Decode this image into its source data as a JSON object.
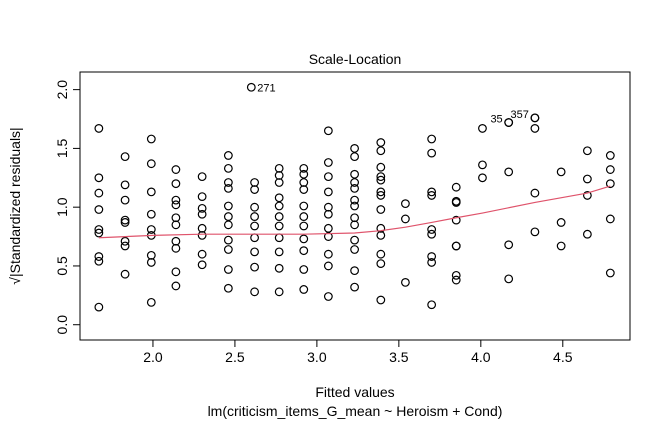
{
  "chart_data": {
    "type": "scatter",
    "title": "Scale-Location",
    "xlabel": "Fitted values",
    "subtitle": "lm(criticism_items_G_mean ~ Heroism + Cond)",
    "ylabel": "√|Standardized residuals|",
    "xlim": [
      1.555,
      4.91
    ],
    "ylim": [
      -0.13,
      2.15
    ],
    "xticks": [
      2.0,
      2.5,
      3.0,
      3.5,
      4.0,
      4.5
    ],
    "xtick_labels": [
      "2.0",
      "2.5",
      "3.0",
      "3.5",
      "4.0",
      "4.5"
    ],
    "yticks": [
      0.0,
      0.5,
      1.0,
      1.5,
      2.0
    ],
    "ytick_labels": [
      "0.0",
      "0.5",
      "1.0",
      "1.5",
      "2.0"
    ],
    "grid": false,
    "point_color": "#000000",
    "smoother_color": "#DF536B",
    "columns": [
      {
        "x": 1.67,
        "y": [
          1.67,
          1.25,
          1.12,
          0.98,
          0.81,
          0.78,
          0.58,
          0.54,
          0.15
        ]
      },
      {
        "x": 1.83,
        "y": [
          1.43,
          1.19,
          1.06,
          0.89,
          0.87,
          0.71,
          0.67,
          0.43
        ]
      },
      {
        "x": 1.99,
        "y": [
          1.58,
          1.37,
          1.13,
          0.94,
          0.81,
          0.76,
          0.59,
          0.53,
          0.19
        ]
      },
      {
        "x": 2.14,
        "y": [
          1.32,
          1.2,
          1.06,
          1.02,
          0.91,
          0.85,
          0.71,
          0.65,
          0.45,
          0.33
        ]
      },
      {
        "x": 2.3,
        "y": [
          1.26,
          1.09,
          0.99,
          0.94,
          0.82,
          0.76,
          0.6,
          0.51
        ]
      },
      {
        "x": 2.46,
        "y": [
          1.44,
          1.33,
          1.21,
          1.16,
          1.01,
          0.92,
          0.85,
          0.72,
          0.64,
          0.47,
          0.31
        ]
      },
      {
        "x": 2.62,
        "y": [
          1.21,
          1.15,
          1.0,
          0.92,
          0.84,
          0.74,
          0.62,
          0.49,
          0.28
        ]
      },
      {
        "x": 2.77,
        "y": [
          1.33,
          1.27,
          1.21,
          1.08,
          1.01,
          0.92,
          0.84,
          0.74,
          0.62,
          0.48,
          0.28
        ]
      },
      {
        "x": 2.92,
        "y": [
          1.33,
          1.28,
          1.21,
          1.15,
          1.01,
          0.92,
          0.84,
          0.73,
          0.63,
          0.47,
          0.3
        ]
      },
      {
        "x": 3.07,
        "y": [
          1.65,
          1.38,
          1.26,
          1.13,
          1.0,
          0.94,
          0.82,
          0.75,
          0.6,
          0.5,
          0.24
        ]
      },
      {
        "x": 3.23,
        "y": [
          1.5,
          1.43,
          1.28,
          1.21,
          1.16,
          1.06,
          1.01,
          0.91,
          0.85,
          0.72,
          0.64,
          0.46,
          0.32
        ]
      },
      {
        "x": 3.39,
        "y": [
          1.55,
          1.48,
          1.34,
          1.26,
          1.23,
          1.13,
          1.1,
          0.98,
          0.82,
          0.76,
          0.6,
          0.52,
          0.21
        ]
      },
      {
        "x": 3.54,
        "y": [
          1.03,
          0.9,
          0.36
        ]
      },
      {
        "x": 3.7,
        "y": [
          1.58,
          1.46,
          1.13,
          1.1,
          0.81,
          0.77,
          0.58,
          0.53,
          0.17
        ]
      },
      {
        "x": 3.85,
        "y": [
          1.17,
          1.05,
          1.04,
          0.89,
          0.67,
          0.67,
          0.42,
          0.38
        ]
      },
      {
        "x": 4.01,
        "y": [
          1.67,
          1.36,
          1.25
        ]
      },
      {
        "x": 4.17,
        "y": [
          1.72,
          1.3,
          0.68,
          0.39
        ]
      },
      {
        "x": 4.33,
        "y": [
          1.76,
          1.67,
          1.12,
          0.79
        ]
      },
      {
        "x": 4.49,
        "y": [
          1.3,
          0.87,
          0.67
        ]
      },
      {
        "x": 4.65,
        "y": [
          1.48,
          1.24,
          1.1,
          0.77
        ]
      },
      {
        "x": 4.79,
        "y": [
          1.44,
          1.32,
          1.2,
          0.9,
          0.44
        ]
      }
    ],
    "labeled_points": [
      {
        "x": 2.6,
        "y": 2.02,
        "label": "271",
        "side": "right"
      },
      {
        "x": 4.17,
        "y": 1.72,
        "label": "35",
        "side": "left"
      },
      {
        "x": 4.33,
        "y": 1.76,
        "label": "357",
        "side": "left"
      }
    ],
    "smoother": {
      "x": [
        1.67,
        2.0,
        2.3,
        2.62,
        2.92,
        3.23,
        3.39,
        3.54,
        3.7,
        3.85,
        4.01,
        4.33,
        4.65,
        4.79
      ],
      "y": [
        0.74,
        0.76,
        0.77,
        0.77,
        0.77,
        0.78,
        0.8,
        0.83,
        0.87,
        0.91,
        0.95,
        1.04,
        1.12,
        1.18
      ]
    }
  }
}
